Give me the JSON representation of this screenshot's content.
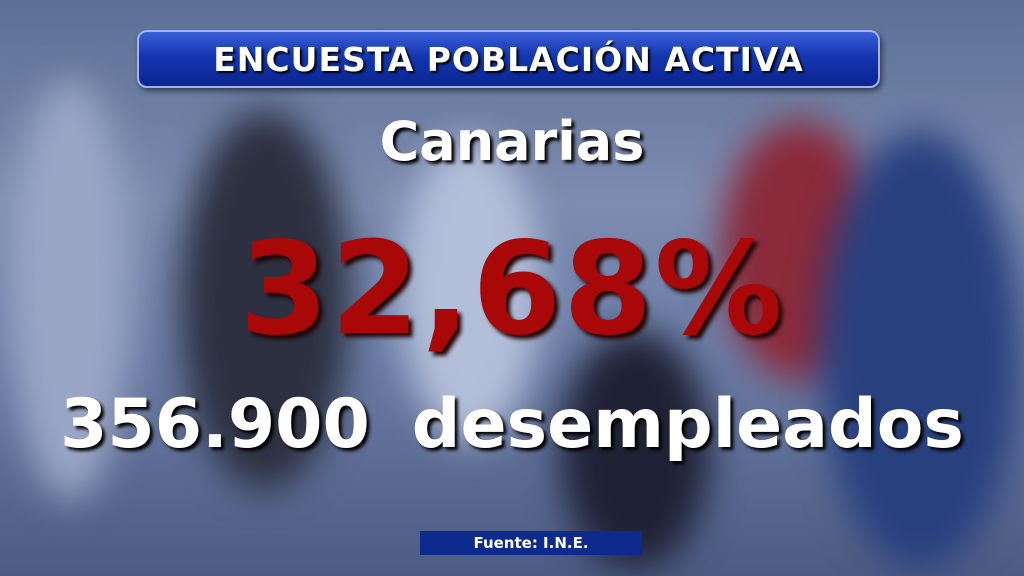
{
  "header": {
    "title": "ENCUESTA POBLACIÓN ACTIVA"
  },
  "region": "Canarias",
  "rate": "32,68%",
  "unemployed": {
    "number": "356.900",
    "label": "desempleados"
  },
  "source": "Fuente: I.N.E."
}
